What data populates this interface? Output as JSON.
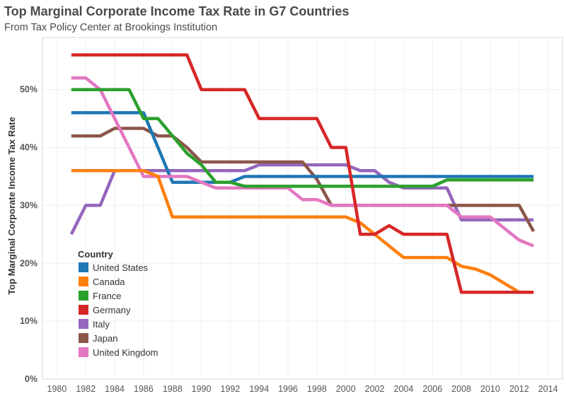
{
  "chart_data": {
    "type": "line",
    "title": "Top Marginal Corporate Income Tax Rate in G7 Countries",
    "subtitle": "From Tax Policy Center at Brookings Institution",
    "ylabel": "Top Marginal Corporate Income Tax Rate",
    "xlabel": "",
    "xlim": [
      1979,
      2015
    ],
    "ylim": [
      0,
      59
    ],
    "x_ticks": [
      1980,
      1982,
      1984,
      1986,
      1988,
      1990,
      1992,
      1994,
      1996,
      1998,
      2000,
      2002,
      2004,
      2006,
      2008,
      2010,
      2012,
      2014
    ],
    "y_ticks": [
      0,
      10,
      20,
      30,
      40,
      50
    ],
    "y_tick_labels": [
      "0%",
      "10%",
      "20%",
      "30%",
      "40%",
      "50%"
    ],
    "grid": true,
    "legend_title": "Country",
    "legend_position": "bottom-left",
    "x": [
      1981,
      1982,
      1983,
      1984,
      1985,
      1986,
      1987,
      1988,
      1989,
      1990,
      1991,
      1992,
      1993,
      1994,
      1995,
      1996,
      1997,
      1998,
      1999,
      2000,
      2001,
      2002,
      2003,
      2004,
      2005,
      2006,
      2007,
      2008,
      2009,
      2010,
      2011,
      2012,
      2013
    ],
    "series": [
      {
        "name": "United States",
        "color": "#1f77b4",
        "values": [
          46,
          46,
          46,
          46,
          46,
          46,
          40,
          34,
          34,
          34,
          34,
          34,
          35,
          35,
          35,
          35,
          35,
          35,
          35,
          35,
          35,
          35,
          35,
          35,
          35,
          35,
          35,
          35,
          35,
          35,
          35,
          35,
          35
        ]
      },
      {
        "name": "Canada",
        "color": "#ff7f0e",
        "values": [
          36,
          36,
          36,
          36,
          36,
          36,
          35,
          28,
          28,
          28,
          28,
          28,
          28,
          28,
          28,
          28,
          28,
          28,
          28,
          28,
          27,
          25,
          23,
          21,
          21,
          21,
          21,
          19.5,
          19,
          18,
          16.5,
          15,
          15
        ]
      },
      {
        "name": "France",
        "color": "#2ca02c",
        "values": [
          50,
          50,
          50,
          50,
          50,
          45,
          45,
          42,
          39,
          37,
          34,
          34,
          33.3,
          33.3,
          33.3,
          33.3,
          33.3,
          33.3,
          33.3,
          33.3,
          33.3,
          33.3,
          33.3,
          33.3,
          33.3,
          33.3,
          34.4,
          34.4,
          34.4,
          34.4,
          34.4,
          34.4,
          34.4
        ]
      },
      {
        "name": "Germany",
        "color": "#d62728",
        "values": [
          56,
          56,
          56,
          56,
          56,
          56,
          56,
          56,
          56,
          50,
          50,
          50,
          50,
          45,
          45,
          45,
          45,
          45,
          40,
          40,
          25,
          25,
          26.5,
          25,
          25,
          25,
          25,
          15,
          15,
          15,
          15,
          15,
          15
        ]
      },
      {
        "name": "Italy",
        "color": "#9467bd",
        "values": [
          25,
          30,
          30,
          36,
          36,
          36,
          36,
          36,
          36,
          36,
          36,
          36,
          36,
          37,
          37,
          37,
          37,
          37,
          37,
          37,
          36,
          36,
          34,
          33,
          33,
          33,
          33,
          27.5,
          27.5,
          27.5,
          27.5,
          27.5,
          27.5
        ]
      },
      {
        "name": "Japan",
        "color": "#8c564b",
        "values": [
          42,
          42,
          42,
          43.3,
          43.3,
          43.3,
          42,
          42,
          40,
          37.5,
          37.5,
          37.5,
          37.5,
          37.5,
          37.5,
          37.5,
          37.5,
          34.5,
          30,
          30,
          30,
          30,
          30,
          30,
          30,
          30,
          30,
          30,
          30,
          30,
          30,
          30,
          25.5
        ]
      },
      {
        "name": "United Kingdom",
        "color": "#e377c2",
        "values": [
          52,
          52,
          50,
          45,
          40,
          35,
          35,
          35,
          35,
          34,
          33,
          33,
          33,
          33,
          33,
          33,
          31,
          31,
          30,
          30,
          30,
          30,
          30,
          30,
          30,
          30,
          30,
          28,
          28,
          28,
          26,
          24,
          23
        ]
      }
    ]
  }
}
